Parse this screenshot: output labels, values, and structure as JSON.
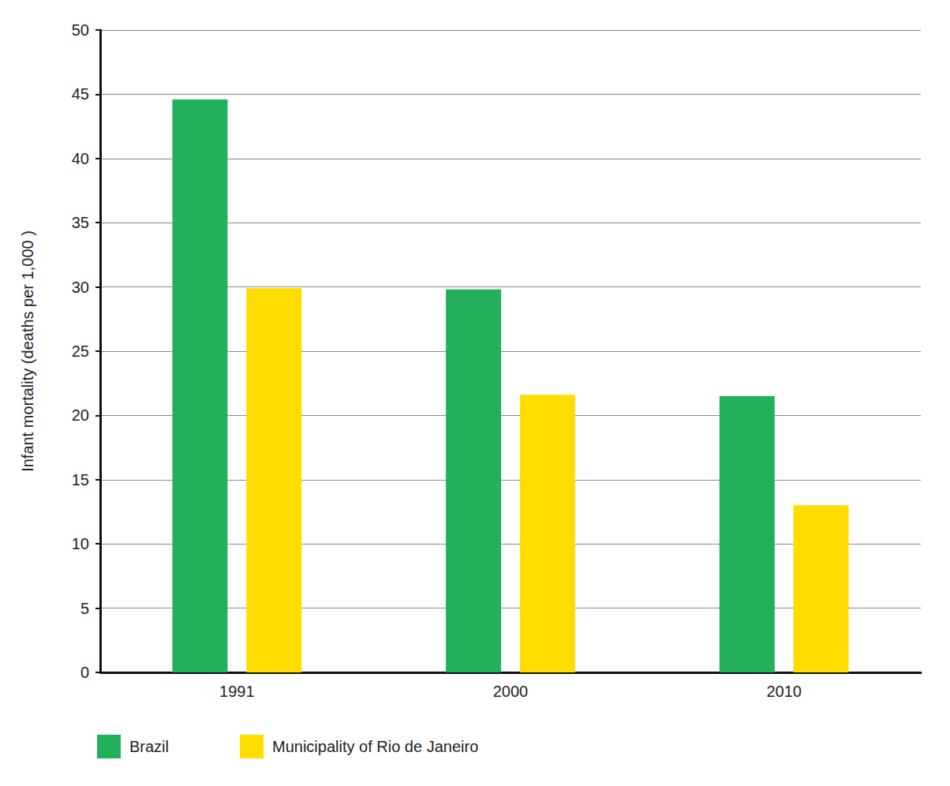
{
  "chart_data": {
    "type": "bar",
    "y_label": "Infant mortality (deaths per 1,000 )",
    "categories": [
      "1991",
      "2000",
      "2010"
    ],
    "series": [
      {
        "name": "Brazil",
        "color": "#22b05a",
        "values": [
          44.6,
          29.8,
          21.5
        ]
      },
      {
        "name": "Municipality of Rio de Janeiro",
        "color": "#ffdd00",
        "values": [
          29.9,
          21.6,
          13.0
        ]
      }
    ],
    "ylim": [
      0,
      50
    ],
    "yticks": [
      0,
      5,
      10,
      15,
      20,
      25,
      30,
      35,
      40,
      45,
      50
    ],
    "grid": true,
    "legend": "bottom-left"
  }
}
